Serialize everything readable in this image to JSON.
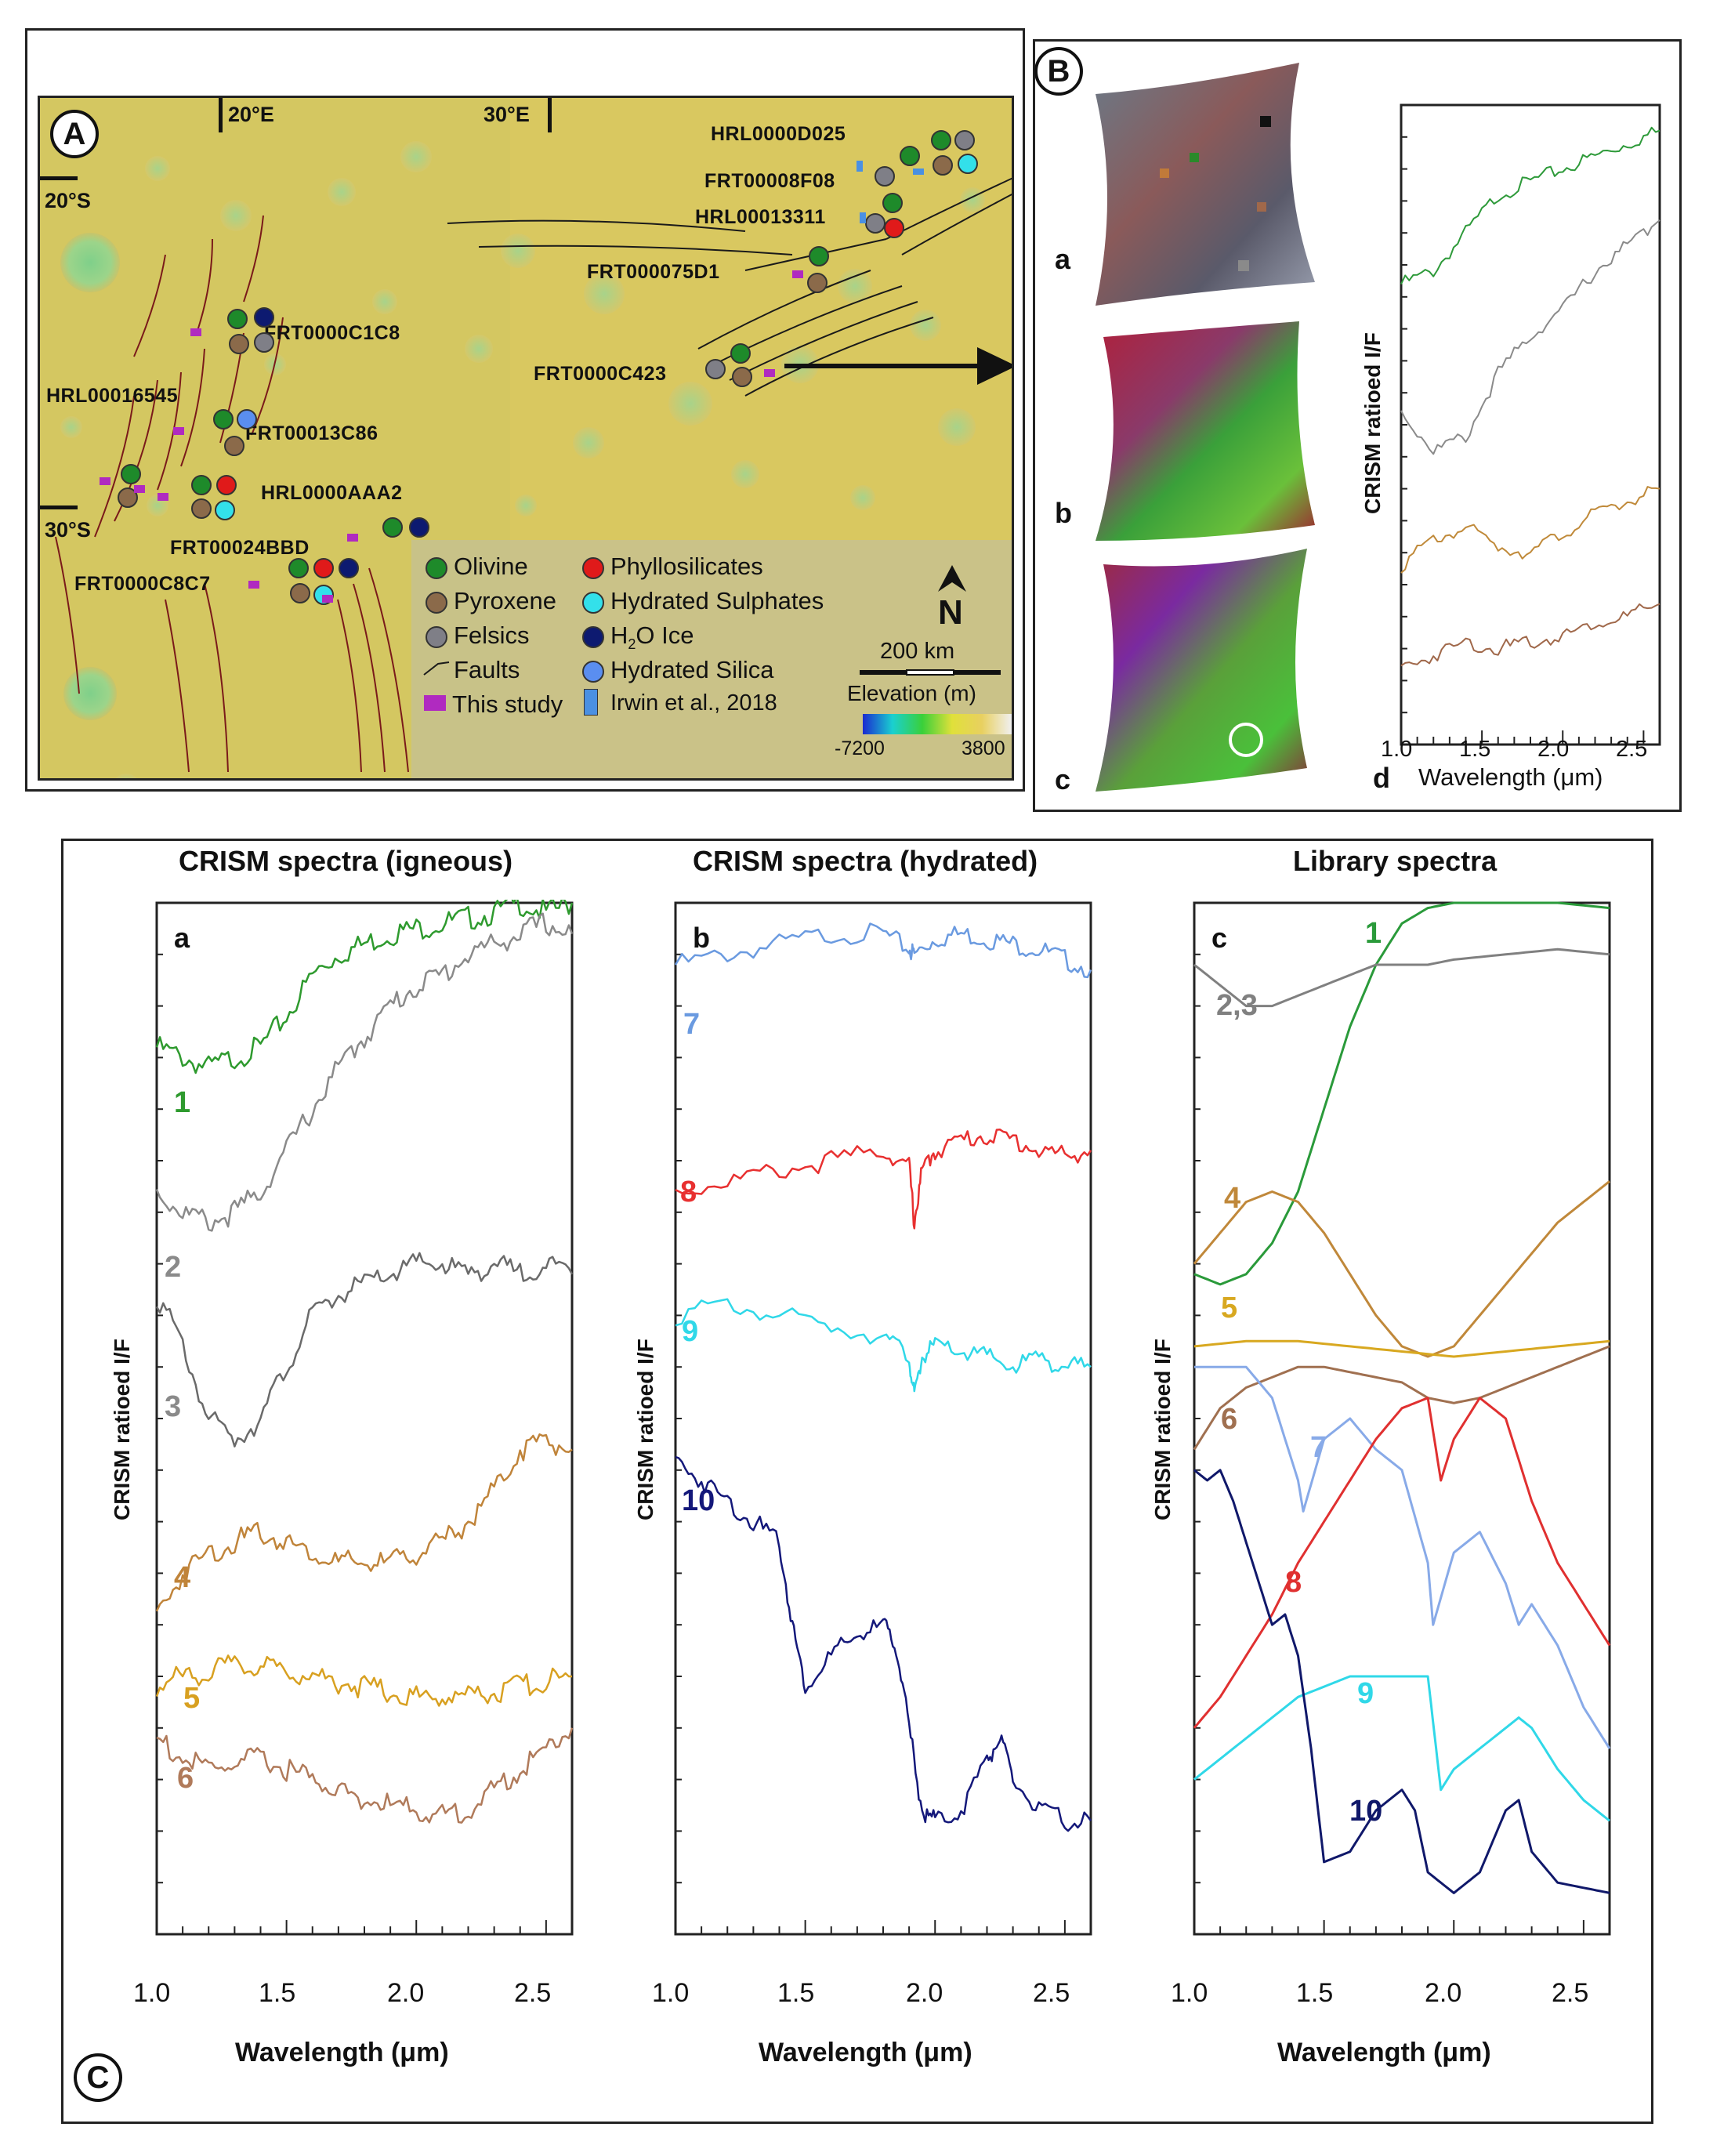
{
  "panels": {
    "A": {
      "letter": "A",
      "coords": {
        "lon1": "20°E",
        "lon2": "30°E",
        "lat1": "20°S",
        "lat2": "30°S"
      },
      "sites": [
        {
          "name": "HRL0000D025"
        },
        {
          "name": "FRT00008F08"
        },
        {
          "name": "HRL00013311"
        },
        {
          "name": "FRT000075D1"
        },
        {
          "name": "FRT0000C1C8"
        },
        {
          "name": "FRT0000C423"
        },
        {
          "name": "HRL00016545"
        },
        {
          "name": "FRT00013C86"
        },
        {
          "name": "HRL0000AAA2"
        },
        {
          "name": "FRT00024BBD"
        },
        {
          "name": "FRT0000C8C7"
        }
      ],
      "legend": {
        "olivine": "Olivine",
        "pyroxene": "Pyroxene",
        "felsics": "Felsics",
        "faults": "Faults",
        "this_study": "This study",
        "phyllosilicates": "Phyllosilicates",
        "hydrated_sulphates": "Hydrated Sulphates",
        "h2o_ice_pre": "H",
        "h2o_ice_sub": "2",
        "h2o_ice_post": "O Ice",
        "hydrated_silica": "Hydrated Silica",
        "irwin": "Irwin et al., 2018",
        "north": "N",
        "scale": "200 km",
        "elevation": "Elevation (m)",
        "elev_min": "-7200",
        "elev_max": "3800"
      },
      "colors": {
        "olivine": "#1e8a2a",
        "pyroxene": "#8b6a4a",
        "felsics": "#7f7f87",
        "phyllosilicates": "#e01a1a",
        "hydrated_sulphates": "#33e0ea",
        "h2o_ice": "#0d1a70",
        "hydrated_silica": "#5a8ef0",
        "this_study": "#b02ac0",
        "irwin": "#4a90e2",
        "fault": "#7a1a1a"
      }
    },
    "B": {
      "letter": "B",
      "sub": {
        "a": "a",
        "b": "b",
        "c": "c",
        "d": "d"
      },
      "ylabel": "CRISM ratioed I/F",
      "xlabel": "Wavelength (μm)",
      "xticks": [
        "1.0",
        "1.5",
        "2.0",
        "2.5"
      ]
    },
    "C": {
      "letter": "C",
      "titles": {
        "a": "CRISM spectra (igneous)",
        "b": "CRISM spectra (hydrated)",
        "c": "Library spectra"
      },
      "sub": {
        "a": "a",
        "b": "b",
        "c": "c"
      },
      "ylabel": "CRISM ratioed I/F",
      "xlabel": "Wavelength (μm)",
      "xticks": [
        "1.0",
        "1.5",
        "2.0",
        "2.5"
      ],
      "labels_a": [
        "1",
        "2",
        "3",
        "4",
        "5",
        "6"
      ],
      "labels_b": [
        "7",
        "8",
        "9",
        "10"
      ],
      "labels_c": [
        "1",
        "2,3",
        "4",
        "5",
        "6",
        "7",
        "8",
        "9",
        "10"
      ]
    }
  },
  "chart_data": [
    {
      "type": "line",
      "title": "",
      "xlabel": "Wavelength (μm)",
      "ylabel": "CRISM ratioed I/F",
      "xlim": [
        1.0,
        2.6
      ],
      "series": [
        {
          "color": "#2e9a3a",
          "x": [
            1.0,
            1.2,
            1.4,
            1.6,
            1.8,
            2.0,
            2.2,
            2.4,
            2.6
          ],
          "y": [
            0.72,
            0.74,
            0.8,
            0.86,
            0.88,
            0.9,
            0.92,
            0.94,
            0.96
          ]
        },
        {
          "color": "#8a8a8a",
          "x": [
            1.0,
            1.2,
            1.4,
            1.6,
            1.8,
            2.0,
            2.2,
            2.4,
            2.6
          ],
          "y": [
            0.52,
            0.46,
            0.48,
            0.58,
            0.64,
            0.68,
            0.74,
            0.78,
            0.82
          ]
        },
        {
          "color": "#c08a3a",
          "x": [
            1.0,
            1.2,
            1.4,
            1.6,
            1.8,
            2.0,
            2.2,
            2.4,
            2.6
          ],
          "y": [
            0.28,
            0.32,
            0.34,
            0.31,
            0.3,
            0.33,
            0.36,
            0.38,
            0.4
          ]
        },
        {
          "color": "#a0684a",
          "x": [
            1.0,
            1.2,
            1.4,
            1.6,
            1.8,
            2.0,
            2.2,
            2.4,
            2.6
          ],
          "y": [
            0.12,
            0.14,
            0.16,
            0.15,
            0.16,
            0.17,
            0.19,
            0.2,
            0.22
          ]
        }
      ]
    },
    {
      "type": "line",
      "title": "CRISM spectra (igneous)",
      "xlabel": "Wavelength (μm)",
      "ylabel": "CRISM ratioed I/F",
      "xlim": [
        1.0,
        2.6
      ],
      "series": [
        {
          "name": "1",
          "color": "#2e9a2e",
          "x": [
            1.0,
            1.1,
            1.2,
            1.3,
            1.4,
            1.5,
            1.6,
            1.7,
            1.8,
            1.9,
            2.0,
            2.1,
            2.2,
            2.3,
            2.4,
            2.5,
            2.6
          ],
          "y": [
            0.86,
            0.85,
            0.84,
            0.85,
            0.86,
            0.89,
            0.93,
            0.95,
            0.96,
            0.97,
            0.975,
            0.98,
            0.985,
            0.99,
            1.0,
            0.99,
            1.0
          ]
        },
        {
          "name": "2",
          "color": "#8a8a8a",
          "x": [
            1.0,
            1.1,
            1.2,
            1.3,
            1.4,
            1.5,
            1.6,
            1.7,
            1.8,
            1.9,
            2.0,
            2.1,
            2.2,
            2.3,
            2.4,
            2.5,
            2.6
          ],
          "y": [
            0.72,
            0.7,
            0.69,
            0.7,
            0.72,
            0.76,
            0.8,
            0.84,
            0.87,
            0.9,
            0.92,
            0.93,
            0.95,
            0.96,
            0.97,
            0.98,
            0.97
          ]
        },
        {
          "name": "3",
          "color": "#6a6a6a",
          "x": [
            1.0,
            1.1,
            1.2,
            1.3,
            1.4,
            1.5,
            1.6,
            1.7,
            1.8,
            1.9,
            2.0,
            2.1,
            2.2,
            2.3,
            2.4,
            2.5,
            2.6
          ],
          "y": [
            0.62,
            0.57,
            0.5,
            0.48,
            0.5,
            0.55,
            0.6,
            0.62,
            0.63,
            0.64,
            0.65,
            0.65,
            0.64,
            0.65,
            0.64,
            0.65,
            0.64
          ]
        },
        {
          "name": "4",
          "color": "#c0843a",
          "x": [
            1.0,
            1.1,
            1.2,
            1.3,
            1.4,
            1.5,
            1.6,
            1.7,
            1.8,
            1.9,
            2.0,
            2.1,
            2.2,
            2.3,
            2.4,
            2.5,
            2.6
          ],
          "y": [
            0.31,
            0.35,
            0.37,
            0.38,
            0.39,
            0.38,
            0.37,
            0.36,
            0.36,
            0.36,
            0.37,
            0.38,
            0.4,
            0.43,
            0.47,
            0.48,
            0.47
          ]
        },
        {
          "name": "5",
          "color": "#d8a020",
          "x": [
            1.0,
            1.1,
            1.2,
            1.3,
            1.4,
            1.5,
            1.6,
            1.7,
            1.8,
            1.9,
            2.0,
            2.1,
            2.2,
            2.3,
            2.4,
            2.5,
            2.6
          ],
          "y": [
            0.24,
            0.25,
            0.255,
            0.26,
            0.26,
            0.255,
            0.25,
            0.245,
            0.24,
            0.235,
            0.23,
            0.23,
            0.232,
            0.235,
            0.24,
            0.245,
            0.25
          ]
        },
        {
          "name": "6",
          "color": "#b07a5a",
          "x": [
            1.0,
            1.1,
            1.2,
            1.3,
            1.4,
            1.5,
            1.6,
            1.7,
            1.8,
            1.9,
            2.0,
            2.1,
            2.2,
            2.3,
            2.4,
            2.5,
            2.6
          ],
          "y": [
            0.19,
            0.17,
            0.16,
            0.165,
            0.17,
            0.16,
            0.15,
            0.14,
            0.13,
            0.125,
            0.12,
            0.115,
            0.12,
            0.14,
            0.16,
            0.18,
            0.2
          ]
        }
      ]
    },
    {
      "type": "line",
      "title": "CRISM spectra (hydrated)",
      "xlabel": "Wavelength (μm)",
      "ylabel": "CRISM ratioed I/F",
      "xlim": [
        1.0,
        2.6
      ],
      "series": [
        {
          "name": "7",
          "color": "#6a9ae0",
          "x": [
            1.0,
            1.2,
            1.4,
            1.6,
            1.8,
            1.9,
            1.92,
            2.0,
            2.1,
            2.2,
            2.3,
            2.4,
            2.5,
            2.6
          ],
          "y": [
            0.94,
            0.95,
            0.96,
            0.97,
            0.97,
            0.955,
            0.95,
            0.965,
            0.97,
            0.965,
            0.96,
            0.955,
            0.945,
            0.935
          ]
        },
        {
          "name": "8",
          "color": "#e83030",
          "x": [
            1.0,
            1.2,
            1.4,
            1.6,
            1.8,
            1.9,
            1.92,
            1.95,
            2.0,
            2.1,
            2.2,
            2.3,
            2.4,
            2.5,
            2.6
          ],
          "y": [
            0.72,
            0.73,
            0.74,
            0.75,
            0.76,
            0.745,
            0.69,
            0.74,
            0.76,
            0.77,
            0.775,
            0.77,
            0.76,
            0.755,
            0.76
          ]
        },
        {
          "name": "9",
          "color": "#30d8e8",
          "x": [
            1.0,
            1.2,
            1.4,
            1.6,
            1.8,
            1.9,
            1.92,
            1.95,
            2.0,
            2.1,
            2.2,
            2.3,
            2.4,
            2.5,
            2.6
          ],
          "y": [
            0.6,
            0.61,
            0.6,
            0.59,
            0.58,
            0.56,
            0.52,
            0.56,
            0.57,
            0.565,
            0.56,
            0.55,
            0.56,
            0.55,
            0.55
          ]
        },
        {
          "name": "10",
          "color": "#14187a",
          "x": [
            1.0,
            1.1,
            1.2,
            1.3,
            1.4,
            1.45,
            1.5,
            1.6,
            1.7,
            1.8,
            1.85,
            1.9,
            1.95,
            2.0,
            2.1,
            2.2,
            2.25,
            2.3,
            2.4,
            2.5,
            2.6
          ],
          "y": [
            0.46,
            0.44,
            0.42,
            0.4,
            0.38,
            0.3,
            0.24,
            0.27,
            0.29,
            0.3,
            0.28,
            0.2,
            0.12,
            0.11,
            0.12,
            0.17,
            0.19,
            0.15,
            0.12,
            0.11,
            0.11
          ]
        }
      ]
    },
    {
      "type": "line",
      "title": "Library spectra",
      "xlabel": "Wavelength (μm)",
      "ylabel": "CRISM ratioed I/F",
      "xlim": [
        1.0,
        2.6
      ],
      "series": [
        {
          "name": "1",
          "color": "#2a9a3a",
          "x": [
            1.0,
            1.1,
            1.2,
            1.3,
            1.4,
            1.5,
            1.6,
            1.7,
            1.8,
            1.9,
            2.0,
            2.2,
            2.4,
            2.6
          ],
          "y": [
            0.64,
            0.63,
            0.64,
            0.67,
            0.72,
            0.8,
            0.88,
            0.94,
            0.98,
            0.995,
            1.0,
            1.0,
            1.0,
            0.995
          ]
        },
        {
          "name": "2,3",
          "color": "#808080",
          "x": [
            1.0,
            1.1,
            1.2,
            1.3,
            1.4,
            1.5,
            1.6,
            1.7,
            1.8,
            1.9,
            2.0,
            2.2,
            2.4,
            2.6
          ],
          "y": [
            0.94,
            0.92,
            0.9,
            0.9,
            0.91,
            0.92,
            0.93,
            0.94,
            0.94,
            0.94,
            0.945,
            0.95,
            0.955,
            0.95
          ]
        },
        {
          "name": "4",
          "color": "#c0883a",
          "x": [
            1.0,
            1.1,
            1.2,
            1.3,
            1.4,
            1.5,
            1.6,
            1.7,
            1.8,
            1.9,
            2.0,
            2.1,
            2.2,
            2.3,
            2.4,
            2.5,
            2.6
          ],
          "y": [
            0.65,
            0.68,
            0.71,
            0.72,
            0.71,
            0.68,
            0.64,
            0.6,
            0.57,
            0.56,
            0.57,
            0.6,
            0.63,
            0.66,
            0.69,
            0.71,
            0.73
          ]
        },
        {
          "name": "5",
          "color": "#d8a820",
          "x": [
            1.0,
            1.2,
            1.4,
            1.6,
            1.8,
            2.0,
            2.2,
            2.4,
            2.6
          ],
          "y": [
            0.57,
            0.575,
            0.575,
            0.57,
            0.565,
            0.56,
            0.565,
            0.57,
            0.575
          ]
        },
        {
          "name": "6",
          "color": "#a07050",
          "x": [
            1.0,
            1.1,
            1.2,
            1.3,
            1.4,
            1.5,
            1.6,
            1.7,
            1.8,
            1.9,
            2.0,
            2.1,
            2.2,
            2.3,
            2.4,
            2.5,
            2.6
          ],
          "y": [
            0.47,
            0.51,
            0.53,
            0.54,
            0.55,
            0.55,
            0.545,
            0.54,
            0.535,
            0.52,
            0.515,
            0.52,
            0.53,
            0.54,
            0.55,
            0.56,
            0.57
          ]
        },
        {
          "name": "7",
          "color": "#88aae8",
          "x": [
            1.0,
            1.1,
            1.2,
            1.3,
            1.4,
            1.42,
            1.5,
            1.6,
            1.7,
            1.8,
            1.9,
            1.92,
            2.0,
            2.1,
            2.2,
            2.25,
            2.3,
            2.4,
            2.5,
            2.6
          ],
          "y": [
            0.55,
            0.55,
            0.55,
            0.52,
            0.44,
            0.41,
            0.48,
            0.5,
            0.47,
            0.45,
            0.36,
            0.3,
            0.37,
            0.39,
            0.34,
            0.3,
            0.32,
            0.28,
            0.22,
            0.18
          ]
        },
        {
          "name": "8",
          "color": "#e03030",
          "x": [
            1.0,
            1.1,
            1.2,
            1.3,
            1.4,
            1.5,
            1.6,
            1.7,
            1.8,
            1.9,
            1.95,
            2.0,
            2.1,
            2.2,
            2.3,
            2.4,
            2.5,
            2.6
          ],
          "y": [
            0.2,
            0.23,
            0.27,
            0.31,
            0.36,
            0.4,
            0.44,
            0.48,
            0.51,
            0.52,
            0.44,
            0.48,
            0.52,
            0.5,
            0.42,
            0.36,
            0.32,
            0.28
          ]
        },
        {
          "name": "9",
          "color": "#30d8e8",
          "x": [
            1.0,
            1.1,
            1.2,
            1.3,
            1.4,
            1.5,
            1.6,
            1.7,
            1.8,
            1.9,
            1.95,
            2.0,
            2.1,
            2.2,
            2.25,
            2.3,
            2.4,
            2.5,
            2.6
          ],
          "y": [
            0.15,
            0.17,
            0.19,
            0.21,
            0.23,
            0.24,
            0.25,
            0.25,
            0.25,
            0.25,
            0.14,
            0.16,
            0.18,
            0.2,
            0.21,
            0.2,
            0.16,
            0.13,
            0.11
          ]
        },
        {
          "name": "10",
          "color": "#10186a",
          "x": [
            1.0,
            1.05,
            1.1,
            1.15,
            1.2,
            1.3,
            1.35,
            1.4,
            1.45,
            1.5,
            1.6,
            1.7,
            1.8,
            1.85,
            1.9,
            2.0,
            2.1,
            2.2,
            2.25,
            2.3,
            2.4,
            2.5,
            2.6
          ],
          "y": [
            0.45,
            0.44,
            0.45,
            0.42,
            0.38,
            0.3,
            0.31,
            0.27,
            0.18,
            0.07,
            0.08,
            0.12,
            0.14,
            0.12,
            0.06,
            0.04,
            0.06,
            0.12,
            0.13,
            0.08,
            0.05,
            0.045,
            0.04
          ]
        }
      ]
    }
  ]
}
